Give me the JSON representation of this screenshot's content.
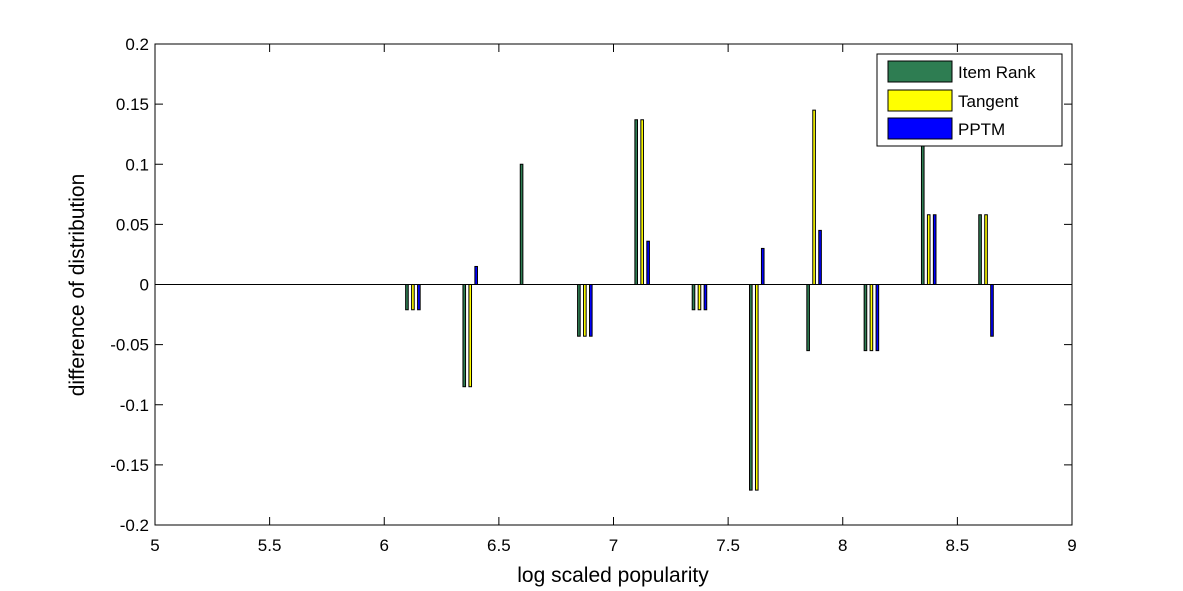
{
  "chart_data": {
    "type": "bar",
    "title": "",
    "xlabel": "log scaled popularity",
    "ylabel": "difference of distribution",
    "xlim": [
      5,
      9
    ],
    "ylim": [
      -0.2,
      0.2
    ],
    "xticks": [
      5,
      5.5,
      6,
      6.5,
      7,
      7.5,
      8,
      8.5,
      9
    ],
    "xtick_labels": [
      "5",
      "5.5",
      "6",
      "6.5",
      "7",
      "7.5",
      "8",
      "8.5",
      "9"
    ],
    "yticks": [
      0.2,
      0.15,
      0.1,
      0.05,
      0,
      -0.05,
      -0.1,
      -0.15,
      -0.2
    ],
    "ytick_labels": [
      "0.2",
      "0.15",
      "0.1",
      "0.05",
      "0",
      "-0.05",
      "-0.1",
      "-0.15",
      "-0.2"
    ],
    "grid": false,
    "legend_position": "top-right",
    "x": [
      6.125,
      6.375,
      6.625,
      6.875,
      7.125,
      7.375,
      7.625,
      7.875,
      8.125,
      8.375,
      8.625
    ],
    "series": [
      {
        "name": "Item Rank",
        "color": "#2e7d52",
        "values": [
          -0.021,
          -0.085,
          0.1,
          -0.043,
          0.137,
          -0.021,
          -0.171,
          -0.055,
          -0.055,
          0.118,
          0.058
        ]
      },
      {
        "name": "Tangent",
        "color": "#ffff00",
        "values": [
          -0.021,
          -0.085,
          0,
          -0.043,
          0.137,
          -0.021,
          -0.171,
          0.145,
          -0.055,
          0.058,
          0.058
        ]
      },
      {
        "name": "PPTM",
        "color": "#0000ff",
        "values": [
          -0.021,
          0.015,
          0,
          -0.043,
          0.036,
          -0.021,
          0.03,
          0.045,
          -0.055,
          0.058,
          -0.043
        ]
      }
    ]
  }
}
